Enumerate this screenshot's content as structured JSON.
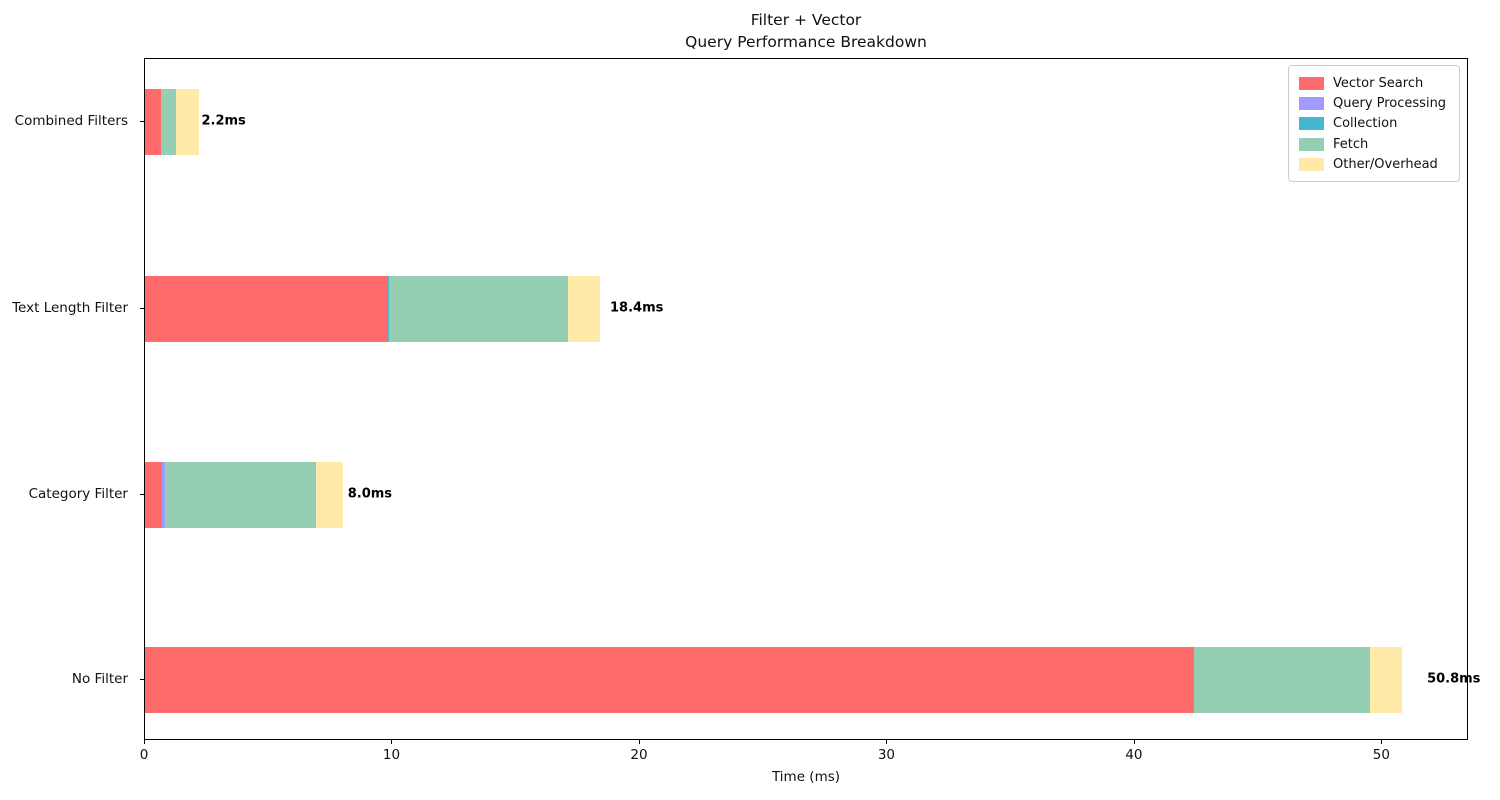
{
  "figure": {
    "title_line1": "Filter + Vector",
    "title_line2": "Query Performance Breakdown",
    "xlabel": "Time (ms)"
  },
  "chart_data": {
    "type": "bar",
    "orientation": "horizontal",
    "stacked": true,
    "title": "Filter + Vector\nQuery Performance Breakdown",
    "xlabel": "Time (ms)",
    "ylabel": "",
    "categories_top_to_bottom": [
      "Combined Filters",
      "Text Length Filter",
      "Category Filter",
      "No Filter"
    ],
    "series": [
      {
        "name": "Vector Search",
        "color": "#FF6B6B",
        "values": [
          0.65,
          9.8,
          0.7,
          42.4
        ]
      },
      {
        "name": "Query Processing",
        "color": "#A29BFE",
        "values": [
          0.0,
          0.0,
          0.1,
          0.0
        ]
      },
      {
        "name": "Collection",
        "color": "#45B7D1",
        "values": [
          0.0,
          0.05,
          0.0,
          0.0
        ]
      },
      {
        "name": "Fetch",
        "color": "#96CEB4",
        "values": [
          0.6,
          7.25,
          6.1,
          7.1
        ]
      },
      {
        "name": "Other/Overhead",
        "color": "#FFEAA7",
        "values": [
          0.95,
          1.3,
          1.1,
          1.3
        ]
      }
    ],
    "totals": [
      2.2,
      18.4,
      8.0,
      50.8
    ],
    "total_labels": [
      "2.2ms",
      "18.4ms",
      "8.0ms",
      "50.8ms"
    ],
    "x_ticks": [
      0,
      10,
      20,
      30,
      40,
      50
    ],
    "xlim": [
      0,
      53.5
    ],
    "grid": false,
    "legend_position": "upper right",
    "legend_entries": [
      "Vector Search",
      "Query Processing",
      "Collection",
      "Fetch",
      "Other/Overhead"
    ]
  }
}
